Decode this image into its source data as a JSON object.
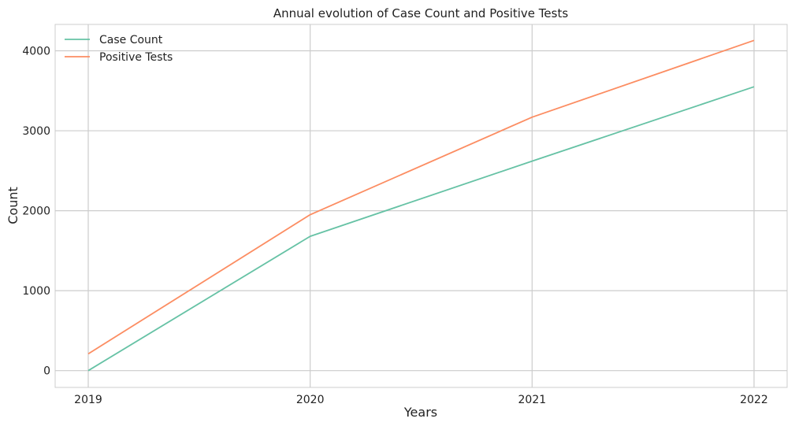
{
  "chart_data": {
    "type": "line",
    "title": "Annual evolution of Case Count and Positive Tests",
    "xlabel": "Years",
    "ylabel": "Count",
    "x": [
      2019,
      2020,
      2021,
      2022
    ],
    "x_tick_labels": [
      "2019",
      "2020",
      "2021",
      "2022"
    ],
    "ylim": [
      -210,
      4330
    ],
    "y_ticks": [
      0,
      1000,
      2000,
      3000,
      4000
    ],
    "y_tick_labels": [
      "0",
      "1000",
      "2000",
      "3000",
      "4000"
    ],
    "grid": true,
    "legend_position": "top-left",
    "series": [
      {
        "name": "Case Count",
        "values": [
          0,
          1680,
          2620,
          3550
        ],
        "color": "#66c2a5"
      },
      {
        "name": "Positive Tests",
        "values": [
          210,
          1950,
          3170,
          4130
        ],
        "color": "#fc8d62"
      }
    ]
  }
}
